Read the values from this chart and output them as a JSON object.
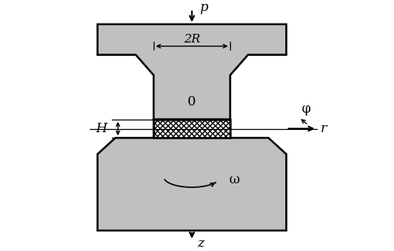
{
  "bg_color": "#ffffff",
  "gray_color": "#c0c0c0",
  "black": "#000000",
  "fig_width": 5.0,
  "fig_height": 3.19,
  "dpi": 100,
  "upper_die_verts": [
    [
      -1.85,
      2.05
    ],
    [
      1.85,
      2.05
    ],
    [
      1.85,
      1.45
    ],
    [
      1.1,
      1.45
    ],
    [
      0.75,
      1.05
    ],
    [
      0.75,
      0.18
    ],
    [
      -0.75,
      0.18
    ],
    [
      -0.75,
      1.05
    ],
    [
      -1.1,
      1.45
    ],
    [
      -1.85,
      1.45
    ],
    [
      -1.85,
      2.05
    ]
  ],
  "lower_die_verts": [
    [
      -1.85,
      -2.0
    ],
    [
      1.85,
      -2.0
    ],
    [
      1.85,
      -0.5
    ],
    [
      1.5,
      -0.18
    ],
    [
      0.75,
      -0.18
    ],
    [
      0.75,
      0.18
    ],
    [
      -0.75,
      0.18
    ],
    [
      -0.75,
      -0.18
    ],
    [
      -1.5,
      -0.18
    ],
    [
      -1.85,
      -0.5
    ],
    [
      -1.85,
      -2.0
    ]
  ],
  "sample_verts": [
    [
      -0.75,
      -0.18
    ],
    [
      0.75,
      -0.18
    ],
    [
      0.75,
      0.18
    ],
    [
      -0.75,
      0.18
    ]
  ],
  "xlim": [
    -2.5,
    2.7
  ],
  "ylim": [
    -2.3,
    2.4
  ]
}
